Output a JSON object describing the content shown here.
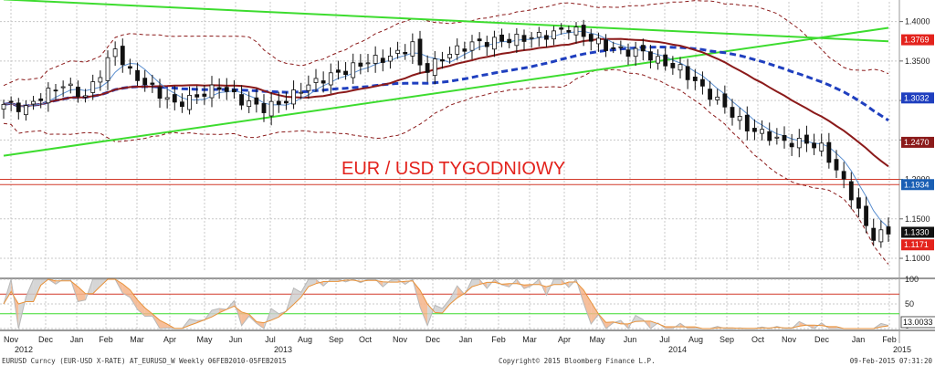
{
  "chart_data": {
    "type": "candlestick",
    "title": "EUR / USD TYGODNIOWY",
    "price_axis": {
      "ticks": [
        "1.4000",
        "1.3500",
        "1.3000",
        "1.2500",
        "1.2000",
        "1.1500",
        "1.1000"
      ],
      "tick_values": [
        1.4,
        1.35,
        1.3,
        1.25,
        1.2,
        1.15,
        1.1
      ],
      "ylim": [
        1.085,
        1.425
      ]
    },
    "price_tags": [
      {
        "label": "1.3769",
        "value": 1.3769,
        "color": "#e3221c",
        "series": "green-line-upper"
      },
      {
        "label": "1.3032",
        "value": 1.3032,
        "color": "#1f3fbf",
        "series": "ma-blue-dashed"
      },
      {
        "label": "1.2470",
        "value": 1.247,
        "color": "#8b1a1a",
        "series": "ma-darkred"
      },
      {
        "label": "1.1934",
        "value": 1.1934,
        "color": "#1a5fb4",
        "series": "hline-red"
      },
      {
        "label": "1.1330",
        "value": 1.133,
        "color": "#111111",
        "series": "last-price"
      },
      {
        "label": "1.1171",
        "value": 1.1171,
        "color": "#e3221c",
        "series": "lower-band"
      }
    ],
    "horizontal_lines": [
      1.2,
      1.1934
    ],
    "oscillator": {
      "ticks": [
        "100",
        "50",
        "0"
      ],
      "tick_values": [
        100,
        50,
        0
      ],
      "ylim": [
        0,
        100
      ],
      "levels": [
        70,
        30
      ],
      "last_label": "13.0033",
      "last_value": 13.0033
    },
    "x_month_labels": [
      "Nov",
      "Dec",
      "Jan",
      "Feb",
      "Mar",
      "Apr",
      "May",
      "Jun",
      "Jul",
      "Aug",
      "Sep",
      "Oct",
      "Nov",
      "Dec",
      "Jan",
      "Feb",
      "Mar",
      "Apr",
      "May",
      "Jun",
      "Jul",
      "Aug",
      "Sep",
      "Oct",
      "Nov",
      "Dec",
      "Jan",
      "Feb"
    ],
    "x_year_labels": [
      {
        "label": "2012",
        "month_index": 0
      },
      {
        "label": "2013",
        "month_index": 8
      },
      {
        "label": "2014",
        "month_index": 20
      },
      {
        "label": "2015",
        "month_index": 27
      }
    ],
    "period": "Weekly 06FEB2010-05FEB2015",
    "trendlines": [
      {
        "name": "green-descending",
        "from": {
          "week": 0,
          "price": 1.428
        },
        "to": {
          "week": 119,
          "price": 1.375
        }
      },
      {
        "name": "green-ascending",
        "from": {
          "week": 0,
          "price": 1.23
        },
        "to": {
          "week": 119,
          "price": 1.392
        }
      }
    ]
  },
  "footer": {
    "left": "EURUSD Curncy (EUR-USD X-RATE) AT_EURUSD_W  Weekly 06FEB2010-05FEB2015",
    "center": "Copyright© 2015 Bloomberg Finance L.P.",
    "right": "09-Feb-2015 07:31:20"
  }
}
